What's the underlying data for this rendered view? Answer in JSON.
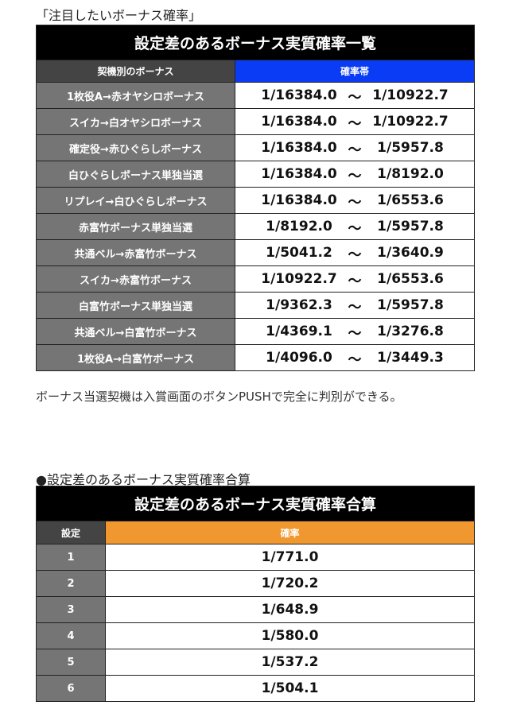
{
  "section1": {
    "heading": "「注目したいボーナス確率」",
    "title": "設定差のあるボーナス実質確率一覧",
    "col1": "契機別のボーナス",
    "col2": "確率帯",
    "col2_color": "#0a3cf5",
    "tilde": "～",
    "rows": [
      {
        "label": "1枚役A→赤オヤシロボーナス",
        "from": "1/16384.0",
        "to": "1/10922.7"
      },
      {
        "label": "スイカ→白オヤシロボーナス",
        "from": "1/16384.0",
        "to": "1/10922.7"
      },
      {
        "label": "確定役→赤ひぐらしボーナス",
        "from": "1/16384.0",
        "to": "1/5957.8"
      },
      {
        "label": "白ひぐらしボーナス単独当選",
        "from": "1/16384.0",
        "to": "1/8192.0"
      },
      {
        "label": "リプレイ→白ひぐらしボーナス",
        "from": "1/16384.0",
        "to": "1/6553.6"
      },
      {
        "label": "赤富竹ボーナス単独当選",
        "from": "1/8192.0",
        "to": "1/5957.8"
      },
      {
        "label": "共通ベル→赤富竹ボーナス",
        "from": "1/5041.2",
        "to": "1/3640.9"
      },
      {
        "label": "スイカ→赤富竹ボーナス",
        "from": "1/10922.7",
        "to": "1/6553.6"
      },
      {
        "label": "白富竹ボーナス単独当選",
        "from": "1/9362.3",
        "to": "1/5957.8"
      },
      {
        "label": "共通ベル→白富竹ボーナス",
        "from": "1/4369.1",
        "to": "1/3276.8"
      },
      {
        "label": "1枚役A→白富竹ボーナス",
        "from": "1/4096.0",
        "to": "1/3449.3"
      }
    ]
  },
  "note": "ボーナス当選契機は入賞画面のボタンPUSHで完全に判別ができる。",
  "section2": {
    "heading": "●設定差のあるボーナス実質確率合算",
    "title": "設定差のあるボーナス実質確率合算",
    "col1": "設定",
    "col2": "確率",
    "col2_color": "#f0982f",
    "rows": [
      {
        "setting": "1",
        "prob": "1/771.0"
      },
      {
        "setting": "2",
        "prob": "1/720.2"
      },
      {
        "setting": "3",
        "prob": "1/648.9"
      },
      {
        "setting": "4",
        "prob": "1/580.0"
      },
      {
        "setting": "5",
        "prob": "1/537.2"
      },
      {
        "setting": "6",
        "prob": "1/504.1"
      }
    ]
  }
}
